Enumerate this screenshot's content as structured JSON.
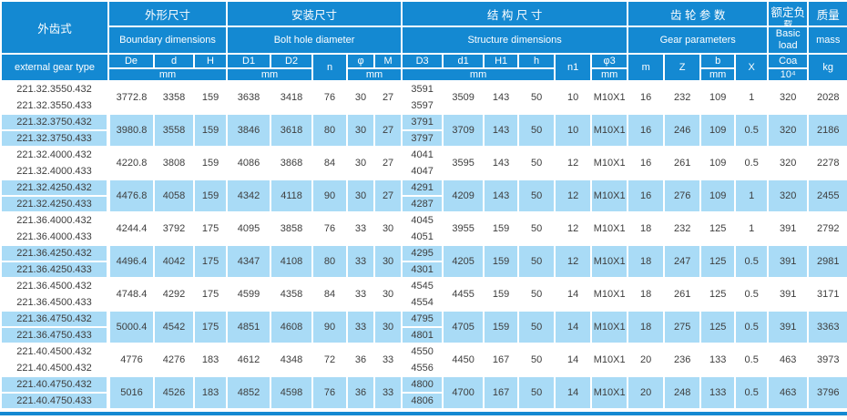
{
  "colors": {
    "header_blue": "#1489d2",
    "row_alt": "#a9dbf6",
    "text": "#3d3d3d",
    "header_text": "#ffffff"
  },
  "header": {
    "gear_type_zh": "外齿式",
    "gear_type_en": "external gear type",
    "sections": {
      "boundary": {
        "zh": "外形尺寸",
        "en": "Boundary dimensions"
      },
      "bolt": {
        "zh": "安装尺寸",
        "en": "Bolt hole diameter"
      },
      "structure": {
        "zh": "结 构 尺 寸",
        "en": "Structure dimensions"
      },
      "gear": {
        "zh": "齿 轮 参 数",
        "en": "Gear parameters"
      },
      "load": {
        "zh": "额定负",
        "zh_overflow": "载",
        "en": "Basic load"
      },
      "mass": {
        "zh": "质量",
        "en": "mass"
      }
    },
    "symbols": {
      "De": "De",
      "d": "d",
      "H": "H",
      "D1": "D1",
      "D2": "D2",
      "n": "n",
      "phi": "φ",
      "M": "M",
      "D3": "D3",
      "d1": "d1",
      "H1": "H1",
      "h": "h",
      "n1": "n1",
      "phi3": "φ3",
      "m": "m",
      "Z": "Z",
      "b": "b",
      "X": "X",
      "Coa": "Coa"
    },
    "units": {
      "mm": "mm",
      "coa": "10⁴",
      "kg": "kg"
    }
  },
  "rows": [
    {
      "types": [
        "221.32.3550.432",
        "221.32.3550.433"
      ],
      "De": "3772.8",
      "d": "3358",
      "H": "159",
      "D1": "3638",
      "D2": "3418",
      "n": "76",
      "phi": "30",
      "M": "27",
      "D3": [
        "3591",
        "3597"
      ],
      "d1": "3509",
      "H1": "143",
      "h": "50",
      "n1": "10",
      "phi3": "M10X1",
      "m": "16",
      "Z": "232",
      "b": "109",
      "X": "1",
      "Coa": "320",
      "mass": "2028"
    },
    {
      "types": [
        "221.32.3750.432",
        "221.32.3750.433"
      ],
      "De": "3980.8",
      "d": "3558",
      "H": "159",
      "D1": "3846",
      "D2": "3618",
      "n": "80",
      "phi": "30",
      "M": "27",
      "D3": [
        "3791",
        "3797"
      ],
      "d1": "3709",
      "H1": "143",
      "h": "50",
      "n1": "10",
      "phi3": "M10X1",
      "m": "16",
      "Z": "246",
      "b": "109",
      "X": "0.5",
      "Coa": "320",
      "mass": "2186"
    },
    {
      "types": [
        "221.32.4000.432",
        "221.32.4000.433"
      ],
      "De": "4220.8",
      "d": "3808",
      "H": "159",
      "D1": "4086",
      "D2": "3868",
      "n": "84",
      "phi": "30",
      "M": "27",
      "D3": [
        "4041",
        "4047"
      ],
      "d1": "3595",
      "H1": "143",
      "h": "50",
      "n1": "12",
      "phi3": "M10X1",
      "m": "16",
      "Z": "261",
      "b": "109",
      "X": "0.5",
      "Coa": "320",
      "mass": "2278"
    },
    {
      "types": [
        "221.32.4250.432",
        "221.32.4250.433"
      ],
      "De": "4476.8",
      "d": "4058",
      "H": "159",
      "D1": "4342",
      "D2": "4118",
      "n": "90",
      "phi": "30",
      "M": "27",
      "D3": [
        "4291",
        "4287"
      ],
      "d1": "4209",
      "H1": "143",
      "h": "50",
      "n1": "12",
      "phi3": "M10X1",
      "m": "16",
      "Z": "276",
      "b": "109",
      "X": "1",
      "Coa": "320",
      "mass": "2455"
    },
    {
      "types": [
        "221.36.4000.432",
        "221.36.4000.433"
      ],
      "De": "4244.4",
      "d": "3792",
      "H": "175",
      "D1": "4095",
      "D2": "3858",
      "n": "76",
      "phi": "33",
      "M": "30",
      "D3": [
        "4045",
        "4051"
      ],
      "d1": "3955",
      "H1": "159",
      "h": "50",
      "n1": "12",
      "phi3": "M10X1",
      "m": "18",
      "Z": "232",
      "b": "125",
      "X": "1",
      "Coa": "391",
      "mass": "2792"
    },
    {
      "types": [
        "221.36.4250.432",
        "221.36.4250.433"
      ],
      "De": "4496.4",
      "d": "4042",
      "H": "175",
      "D1": "4347",
      "D2": "4108",
      "n": "80",
      "phi": "33",
      "M": "30",
      "D3": [
        "4295",
        "4301"
      ],
      "d1": "4205",
      "H1": "159",
      "h": "50",
      "n1": "12",
      "phi3": "M10X1",
      "m": "18",
      "Z": "247",
      "b": "125",
      "X": "0.5",
      "Coa": "391",
      "mass": "2981"
    },
    {
      "types": [
        "221.36.4500.432",
        "221.36.4500.433"
      ],
      "De": "4748.4",
      "d": "4292",
      "H": "175",
      "D1": "4599",
      "D2": "4358",
      "n": "84",
      "phi": "33",
      "M": "30",
      "D3": [
        "4545",
        "4554"
      ],
      "d1": "4455",
      "H1": "159",
      "h": "50",
      "n1": "14",
      "phi3": "M10X1",
      "m": "18",
      "Z": "261",
      "b": "125",
      "X": "0.5",
      "Coa": "391",
      "mass": "3171"
    },
    {
      "types": [
        "221.36.4750.432",
        "221.36.4750.433"
      ],
      "De": "5000.4",
      "d": "4542",
      "H": "175",
      "D1": "4851",
      "D2": "4608",
      "n": "90",
      "phi": "33",
      "M": "30",
      "D3": [
        "4795",
        "4801"
      ],
      "d1": "4705",
      "H1": "159",
      "h": "50",
      "n1": "14",
      "phi3": "M10X1",
      "m": "18",
      "Z": "275",
      "b": "125",
      "X": "0.5",
      "Coa": "391",
      "mass": "3363"
    },
    {
      "types": [
        "221.40.4500.432",
        "221.40.4500.432"
      ],
      "De": "4776",
      "d": "4276",
      "H": "183",
      "D1": "4612",
      "D2": "4348",
      "n": "72",
      "phi": "36",
      "M": "33",
      "D3": [
        "4550",
        "4556"
      ],
      "d1": "4450",
      "H1": "167",
      "h": "50",
      "n1": "14",
      "phi3": "M10X1",
      "m": "20",
      "Z": "236",
      "b": "133",
      "X": "0.5",
      "Coa": "463",
      "mass": "3973"
    },
    {
      "types": [
        "221.40.4750.432",
        "221.40.4750.433"
      ],
      "De": "5016",
      "d": "4526",
      "H": "183",
      "D1": "4852",
      "D2": "4598",
      "n": "76",
      "phi": "36",
      "M": "33",
      "D3": [
        "4800",
        "4806"
      ],
      "d1": "4700",
      "H1": "167",
      "h": "50",
      "n1": "14",
      "phi3": "M10X1",
      "m": "20",
      "Z": "248",
      "b": "133",
      "X": "0.5",
      "Coa": "463",
      "mass": "3796"
    }
  ]
}
